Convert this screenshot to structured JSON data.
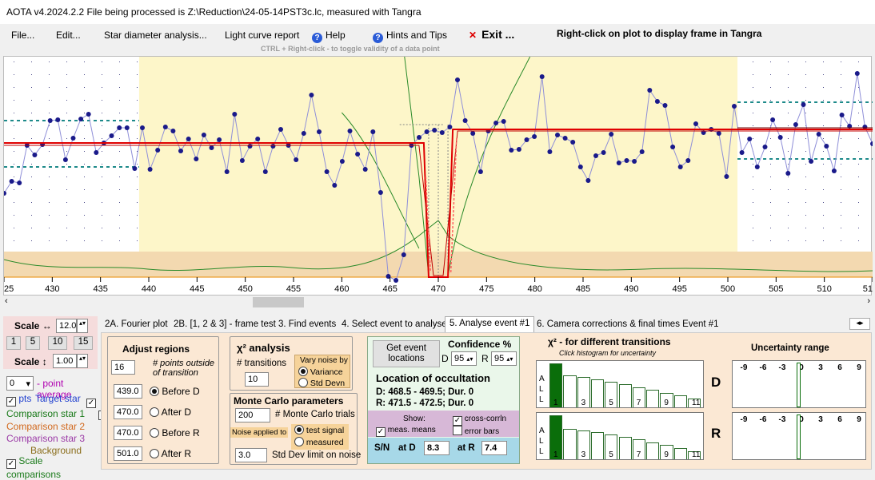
{
  "titlebar": {
    "text": "AOTA v4.2024.2.2    File being processed is Z:\\Reduction\\24-05-14PST3c.lc, measured with Tangra"
  },
  "menu": {
    "file": "File...",
    "edit": "Edit...",
    "star_diameter": "Star diameter analysis...",
    "light_curve": "Light curve report",
    "help": "Help",
    "hints": "Hints and Tips",
    "exit": "Exit ...",
    "tangra_hint": "Right-click on plot to display frame in Tangra",
    "ctrl_hint": "CTRL + Right-click   -  to toggle validity of a data point"
  },
  "plot": {
    "x_ticks": [
      "25",
      "430",
      "435",
      "440",
      "445",
      "450",
      "455",
      "460",
      "465",
      "470",
      "475",
      "480",
      "485",
      "490",
      "495",
      "500",
      "505",
      "510",
      "51"
    ],
    "x_min": 425,
    "x_max": 515,
    "highlight_start": 439,
    "highlight_end": 501
  },
  "left_panel": {
    "scale_h_label": "Scale ↔",
    "scale_h_value": "12.0",
    "zoom_buttons": [
      "1",
      "5",
      "10",
      "15"
    ],
    "scale_v_label": "Scale ↕",
    "scale_v_value": "1.00",
    "point_avg_value": "0",
    "point_avg_label": "- point average",
    "pts_label": "pts",
    "target_label": "Target star",
    "comp1": "Comparison star 1",
    "comp2": "Comparison star 2",
    "comp3": "Comparison star 3",
    "background": "Background",
    "scale_comp": "Scale comparisons",
    "colors": {
      "target": "#1f3fcf",
      "comp1": "#1a7a1a",
      "comp2": "#d2691e",
      "comp3": "#9b3aa6",
      "background": "#8a6d1a"
    }
  },
  "tabs": [
    "2A. Fourier plot",
    "2B. [1, 2 & 3] - frame test",
    "3. Find events",
    "4. Select event to analyse",
    "5. Analyse event #1",
    "6. Camera corrections & final times Event #1"
  ],
  "adjust": {
    "title": "Adjust regions",
    "points_value": "16",
    "points_label": "# points outside of transition",
    "rows": [
      {
        "value": "439.0",
        "label": "Before D",
        "selected": true
      },
      {
        "value": "470.0",
        "label": "After D",
        "selected": false
      },
      {
        "value": "470.0",
        "label": "Before R",
        "selected": false
      },
      {
        "value": "501.0",
        "label": "After R",
        "selected": false
      }
    ]
  },
  "chi": {
    "title": "χ² analysis",
    "transitions_label": "# transitions",
    "transitions_value": "10",
    "vary_label": "Vary noise by",
    "variance": "Variance",
    "stddev": "Std Devn"
  },
  "monte": {
    "title": "Monte Carlo parameters",
    "trials_value": "200",
    "trials_label": "# Monte Carlo trials",
    "noise_applied": "Noise applied to",
    "test_signal": "test signal",
    "measured": "measured",
    "sd_value": "3.0",
    "sd_label": "Std Dev limit on noise"
  },
  "event": {
    "button": "Get event locations",
    "confidence": "Confidence %",
    "d_label": "D",
    "d_value": "95",
    "r_label": "R",
    "r_value": "95",
    "location_title": "Location of occultation",
    "d_line": "D: 468.5 - 469.5; Dur. 0",
    "r_line": "R: 471.5 - 472.5; Dur. 0",
    "show_label": "Show:",
    "meas_means": "meas. means",
    "cross_corr": "cross-corrln",
    "error_bars": "error bars",
    "sn_label": "S/N",
    "at_d_label": "at D",
    "at_d_value": "8.3",
    "at_r_label": "at R",
    "at_r_value": "7.4"
  },
  "chi_hist": {
    "title": "χ² - for different transitions",
    "subtitle": "Click histogram for uncertainty",
    "side_label": [
      "A",
      "L",
      "L"
    ],
    "ticks": [
      "1",
      "3",
      "5",
      "7",
      "9",
      "11"
    ],
    "d_label": "D",
    "r_label": "R",
    "d_heights": [
      1.0,
      0.73,
      0.69,
      0.64,
      0.58,
      0.52,
      0.46,
      0.4,
      0.33,
      0.27,
      0.2
    ],
    "r_heights": [
      1.0,
      0.7,
      0.66,
      0.62,
      0.57,
      0.51,
      0.45,
      0.38,
      0.32,
      0.25,
      0.18
    ]
  },
  "uncertainty": {
    "title": "Uncertainty range",
    "ticks": [
      "-9",
      "-6",
      "-3",
      "0",
      "3",
      "6",
      "9"
    ]
  }
}
